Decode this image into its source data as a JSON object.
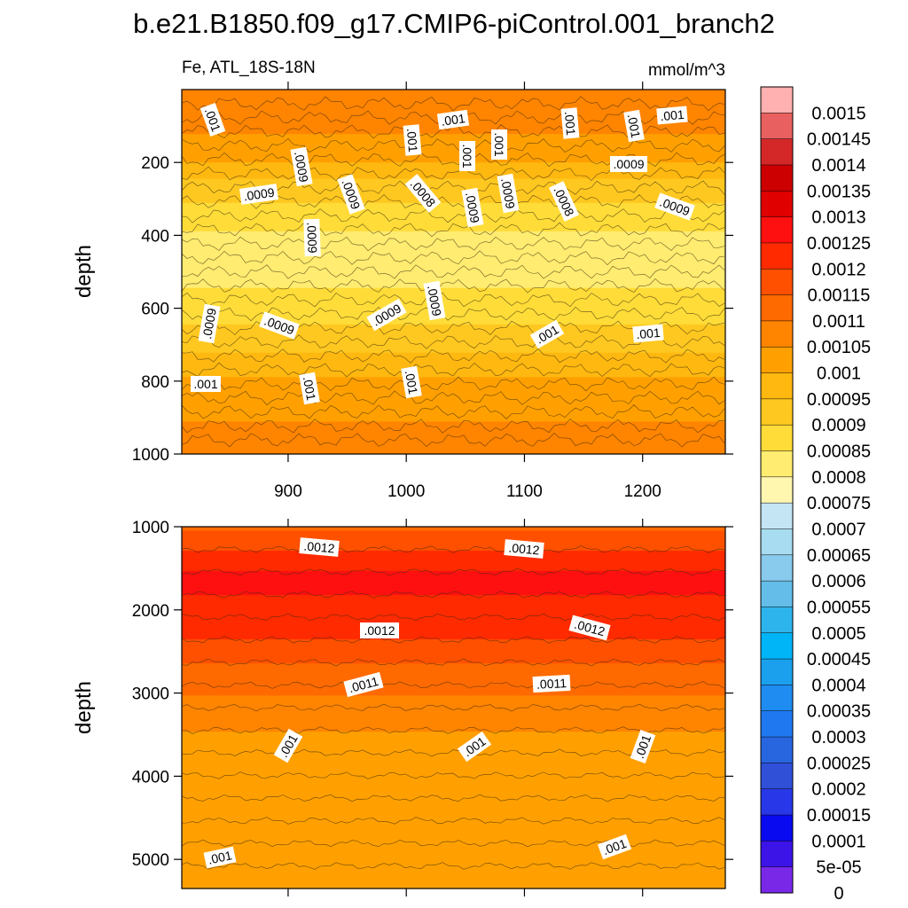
{
  "chart_data": {
    "type": "heatmap",
    "title": "b.e21.B1850.f09_g17.CMIP6-piControl.001_branch2",
    "left_label": "Fe, ATL_18S-18N",
    "right_label": "mmol/m^3",
    "ylabel": "depth",
    "panels": [
      {
        "name": "upper",
        "ylim": [
          0,
          1000
        ],
        "xlim": [
          810,
          1270
        ],
        "yticks": [
          "200",
          "400",
          "600",
          "800",
          "1000"
        ],
        "xticks": [
          "900",
          "1000",
          "1100",
          "1200"
        ],
        "contour_labels": [
          ".001",
          ".001",
          ".001",
          ".001",
          ".001",
          ".001",
          ".001",
          ".001",
          ".0009",
          ".0009",
          ".0009",
          ".0009",
          ".0008",
          ".0009",
          ".0009",
          ".0008",
          ".0009",
          ".0009",
          ".0009",
          ".0009",
          ".0009",
          ".0009",
          ".001",
          ".001",
          ".001",
          ".001",
          ".001"
        ],
        "profile": [
          {
            "depth": 0,
            "value": 0.00105
          },
          {
            "depth": 150,
            "value": 0.00102
          },
          {
            "depth": 250,
            "value": 0.00092
          },
          {
            "depth": 450,
            "value": 0.00078
          },
          {
            "depth": 650,
            "value": 0.00088
          },
          {
            "depth": 800,
            "value": 0.00098
          },
          {
            "depth": 1000,
            "value": 0.00106
          }
        ]
      },
      {
        "name": "lower",
        "ylim": [
          1000,
          5350
        ],
        "yticks": [
          "1000",
          "2000",
          "3000",
          "4000",
          "5000"
        ],
        "contour_labels": [
          ".0012",
          ".0012",
          ".0012",
          ".0012",
          ".0011",
          ".0011",
          ".001",
          ".001",
          ".001",
          ".001",
          ".001"
        ],
        "profile": [
          {
            "depth": 1000,
            "value": 0.00112
          },
          {
            "depth": 1600,
            "value": 0.00124
          },
          {
            "depth": 2200,
            "value": 0.0012
          },
          {
            "depth": 2800,
            "value": 0.0011
          },
          {
            "depth": 3600,
            "value": 0.00101
          },
          {
            "depth": 4800,
            "value": 0.00098
          },
          {
            "depth": 5350,
            "value": 0.00102
          }
        ]
      }
    ],
    "colorbar": {
      "labels": [
        "0.0015",
        "0.00145",
        "0.0014",
        "0.00135",
        "0.0013",
        "0.00125",
        "0.0012",
        "0.00115",
        "0.0011",
        "0.00105",
        "0.001",
        "0.00095",
        "0.0009",
        "0.00085",
        "0.0008",
        "0.00075",
        "0.0007",
        "0.00065",
        "0.0006",
        "0.00055",
        "0.0005",
        "0.00045",
        "0.0004",
        "0.00035",
        "0.0003",
        "0.00025",
        "0.0002",
        "0.00015",
        "0.0001",
        "5e-05",
        "0"
      ],
      "colors": [
        "#ffb0b0",
        "#e86060",
        "#d42828",
        "#cc0000",
        "#e00000",
        "#ff1010",
        "#ff2a00",
        "#ff5000",
        "#ff6a00",
        "#ff8400",
        "#ffa000",
        "#ffb810",
        "#ffc820",
        "#ffdc38",
        "#ffec70",
        "#fff6b0",
        "#c4e6f4",
        "#a8dcf0",
        "#88cbec",
        "#64bde8",
        "#2eb4ec",
        "#00b4f8",
        "#1aa0ec",
        "#1e8cf0",
        "#2078f0",
        "#2866e0",
        "#3050d8",
        "#2838e8",
        "#0a0af0",
        "#3c14e8",
        "#7a28e8"
      ]
    }
  }
}
